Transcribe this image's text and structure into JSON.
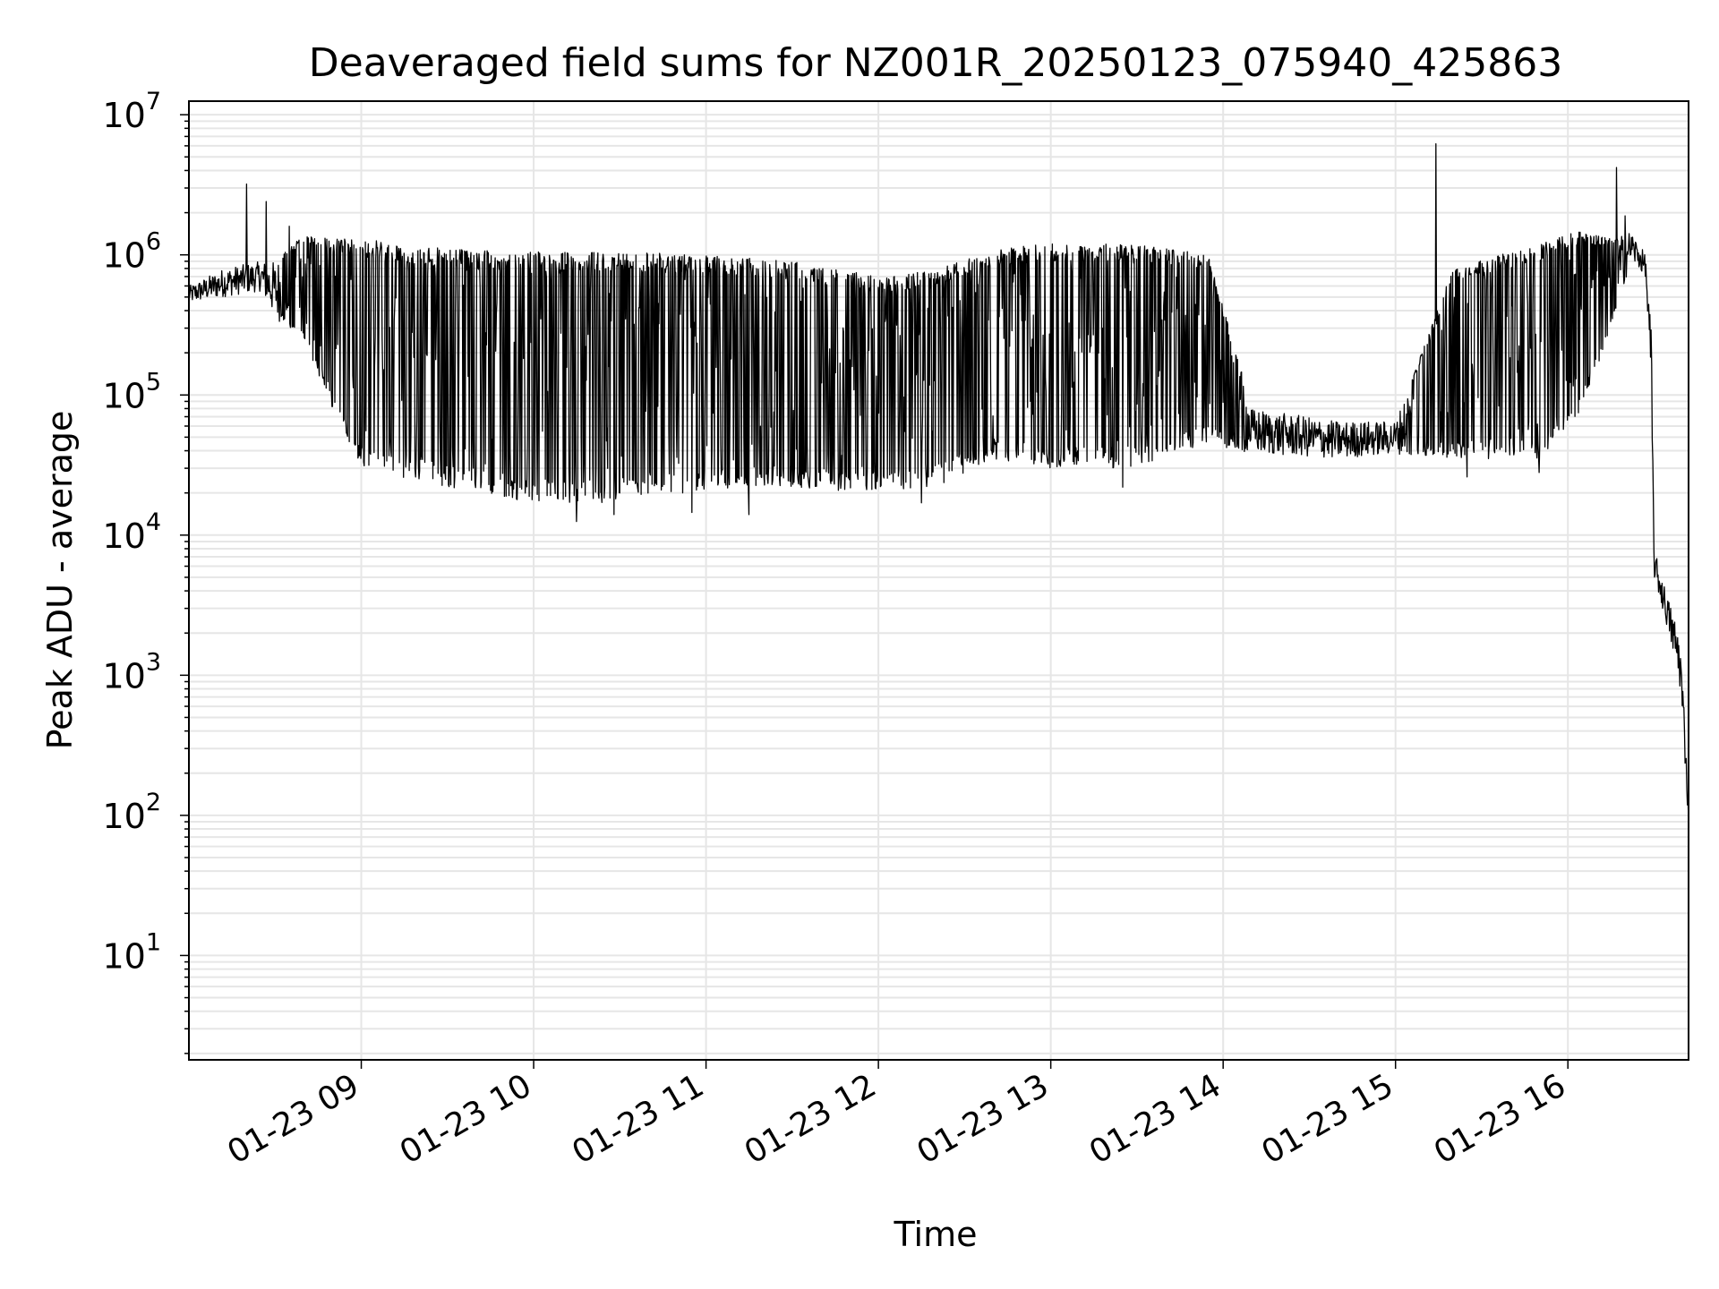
{
  "chart_data": {
    "type": "line",
    "title": "Deaveraged field sums for NZ001R_20250123_075940_425863",
    "xlabel": "Time",
    "ylabel": "Peak ADU - average",
    "yscale": "log",
    "ylim": [
      1.8,
      12500000
    ],
    "xlim": [
      "2025-01-23 08:00",
      "2025-01-23 16:42"
    ],
    "grid": true,
    "line_color": "#000000",
    "grid_color": "#e6e6e6",
    "yticks": [
      {
        "exp": "1",
        "base": "10"
      },
      {
        "exp": "2",
        "base": "10"
      },
      {
        "exp": "3",
        "base": "10"
      },
      {
        "exp": "4",
        "base": "10"
      },
      {
        "exp": "5",
        "base": "10"
      },
      {
        "exp": "6",
        "base": "10"
      },
      {
        "exp": "7",
        "base": "10"
      }
    ],
    "xticks": [
      "01-23 09",
      "01-23 10",
      "01-23 11",
      "01-23 12",
      "01-23 13",
      "01-23 14",
      "01-23 15",
      "01-23 16"
    ],
    "series": [
      {
        "name": "",
        "envelope": [
          {
            "t": "08:00",
            "low": 450000,
            "high": 600000
          },
          {
            "t": "08:12",
            "low": 500000,
            "high": 800000
          },
          {
            "t": "08:25",
            "low": 550000,
            "high": 900000
          },
          {
            "t": "08:30",
            "low": 350000,
            "high": 900000
          },
          {
            "t": "08:40",
            "low": 250000,
            "high": 1400000
          },
          {
            "t": "08:50",
            "low": 80000,
            "high": 1300000
          },
          {
            "t": "09:00",
            "low": 30000,
            "high": 1300000
          },
          {
            "t": "09:30",
            "low": 22000,
            "high": 1100000
          },
          {
            "t": "10:00",
            "low": 17000,
            "high": 1050000
          },
          {
            "t": "10:30",
            "low": 17000,
            "high": 1050000
          },
          {
            "t": "11:00",
            "low": 20000,
            "high": 1000000
          },
          {
            "t": "11:30",
            "low": 22000,
            "high": 900000
          },
          {
            "t": "12:00",
            "low": 20000,
            "high": 700000
          },
          {
            "t": "12:20",
            "low": 22000,
            "high": 800000
          },
          {
            "t": "12:40",
            "low": 35000,
            "high": 1100000
          },
          {
            "t": "13:00",
            "low": 30000,
            "high": 1200000
          },
          {
            "t": "13:30",
            "low": 30000,
            "high": 1200000
          },
          {
            "t": "13:55",
            "low": 45000,
            "high": 1000000
          },
          {
            "t": "14:10",
            "low": 38000,
            "high": 80000
          },
          {
            "t": "14:40",
            "low": 35000,
            "high": 65000
          },
          {
            "t": "15:00",
            "low": 38000,
            "high": 65000
          },
          {
            "t": "15:20",
            "low": 35000,
            "high": 800000
          },
          {
            "t": "15:50",
            "low": 35000,
            "high": 1200000
          },
          {
            "t": "16:05",
            "low": 80000,
            "high": 1500000
          },
          {
            "t": "16:15",
            "low": 300000,
            "high": 1300000
          },
          {
            "t": "16:22",
            "low": 900000,
            "high": 1500000
          },
          {
            "t": "16:27",
            "low": 700000,
            "high": 1000000
          },
          {
            "t": "16:29",
            "low": 100000,
            "high": 300000
          },
          {
            "t": "16:30",
            "low": 5000,
            "high": 8000
          },
          {
            "t": "16:35",
            "low": 2000,
            "high": 3500
          },
          {
            "t": "16:39",
            "low": 800,
            "high": 2000
          },
          {
            "t": "16:41",
            "low": 200,
            "high": 400
          },
          {
            "t": "16:42",
            "low": 80,
            "high": 100
          }
        ],
        "spikes": [
          {
            "t": "08:20",
            "value": 3200000
          },
          {
            "t": "08:27",
            "value": 2400000
          },
          {
            "t": "08:35",
            "value": 1600000
          },
          {
            "t": "15:14",
            "value": 6200000
          },
          {
            "t": "16:17",
            "value": 4200000
          },
          {
            "t": "16:20",
            "value": 1900000
          }
        ],
        "dips": [
          {
            "t": "10:15",
            "value": 12500
          },
          {
            "t": "10:28",
            "value": 14000
          },
          {
            "t": "10:55",
            "value": 14500
          },
          {
            "t": "11:15",
            "value": 14000
          },
          {
            "t": "12:15",
            "value": 17000
          },
          {
            "t": "13:25",
            "value": 22000
          },
          {
            "t": "15:25",
            "value": 26000
          },
          {
            "t": "15:50",
            "value": 28000
          }
        ]
      }
    ]
  }
}
